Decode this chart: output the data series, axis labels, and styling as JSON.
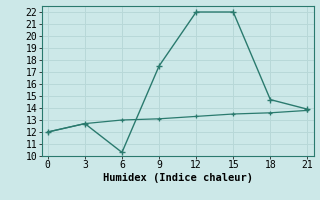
{
  "xlabel": "Humidex (Indice chaleur)",
  "line1_x": [
    0,
    3,
    6,
    9,
    12,
    15,
    18,
    21
  ],
  "line1_y": [
    12.0,
    12.7,
    10.3,
    17.5,
    22.0,
    22.0,
    14.7,
    13.9
  ],
  "line2_x": [
    0,
    3,
    6,
    9,
    12,
    15,
    18,
    21
  ],
  "line2_y": [
    12.0,
    12.7,
    13.0,
    13.1,
    13.3,
    13.5,
    13.6,
    13.8
  ],
  "line_color": "#2a7a6e",
  "bg_color": "#cce8e8",
  "grid_color": "#b8d8d8",
  "xlim": [
    -0.5,
    21.5
  ],
  "ylim": [
    10,
    22.5
  ],
  "xticks": [
    0,
    3,
    6,
    9,
    12,
    15,
    18,
    21
  ],
  "yticks": [
    10,
    11,
    12,
    13,
    14,
    15,
    16,
    17,
    18,
    19,
    20,
    21,
    22
  ],
  "xlabel_fontsize": 7.5,
  "tick_fontsize": 7
}
